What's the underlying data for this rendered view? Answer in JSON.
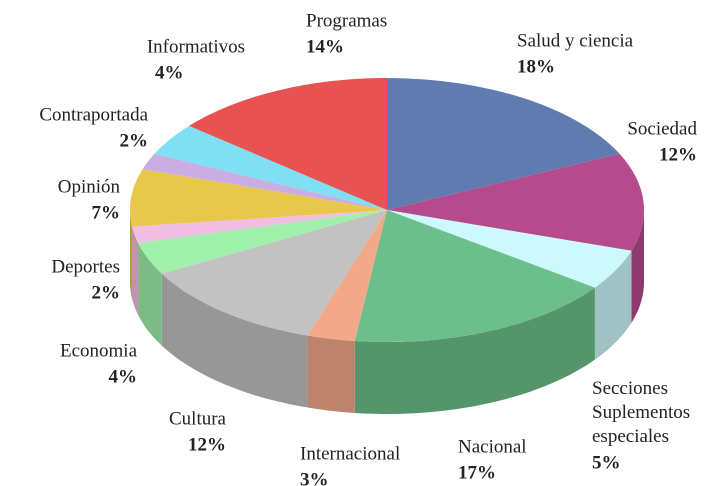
{
  "chart_data": {
    "type": "pie",
    "categories": [
      "Salud y ciencia",
      "Sociedad",
      "Secciones Suplementos especiales",
      "Nacional",
      "Internacional",
      "Cultura",
      "Economia",
      "Deportes",
      "Opinión",
      "Contraportada",
      "Informativos",
      "Programas"
    ],
    "values": [
      18,
      12,
      5,
      17,
      3,
      12,
      4,
      2,
      7,
      2,
      4,
      14
    ],
    "value_labels": [
      "18%",
      "12%",
      "5%",
      "17%",
      "3%",
      "12%",
      "4%",
      "2%",
      "7%",
      "2%",
      "4%",
      "14%"
    ],
    "colors": [
      "#5f7bb0",
      "#b54a8c",
      "#cdf9fc",
      "#6cbf8a",
      "#f4a88a",
      "#c2c2c2",
      "#9ff0aa",
      "#f2bde3",
      "#e8c84c",
      "#c9aee2",
      "#7fe0f4",
      "#e85252"
    ]
  }
}
